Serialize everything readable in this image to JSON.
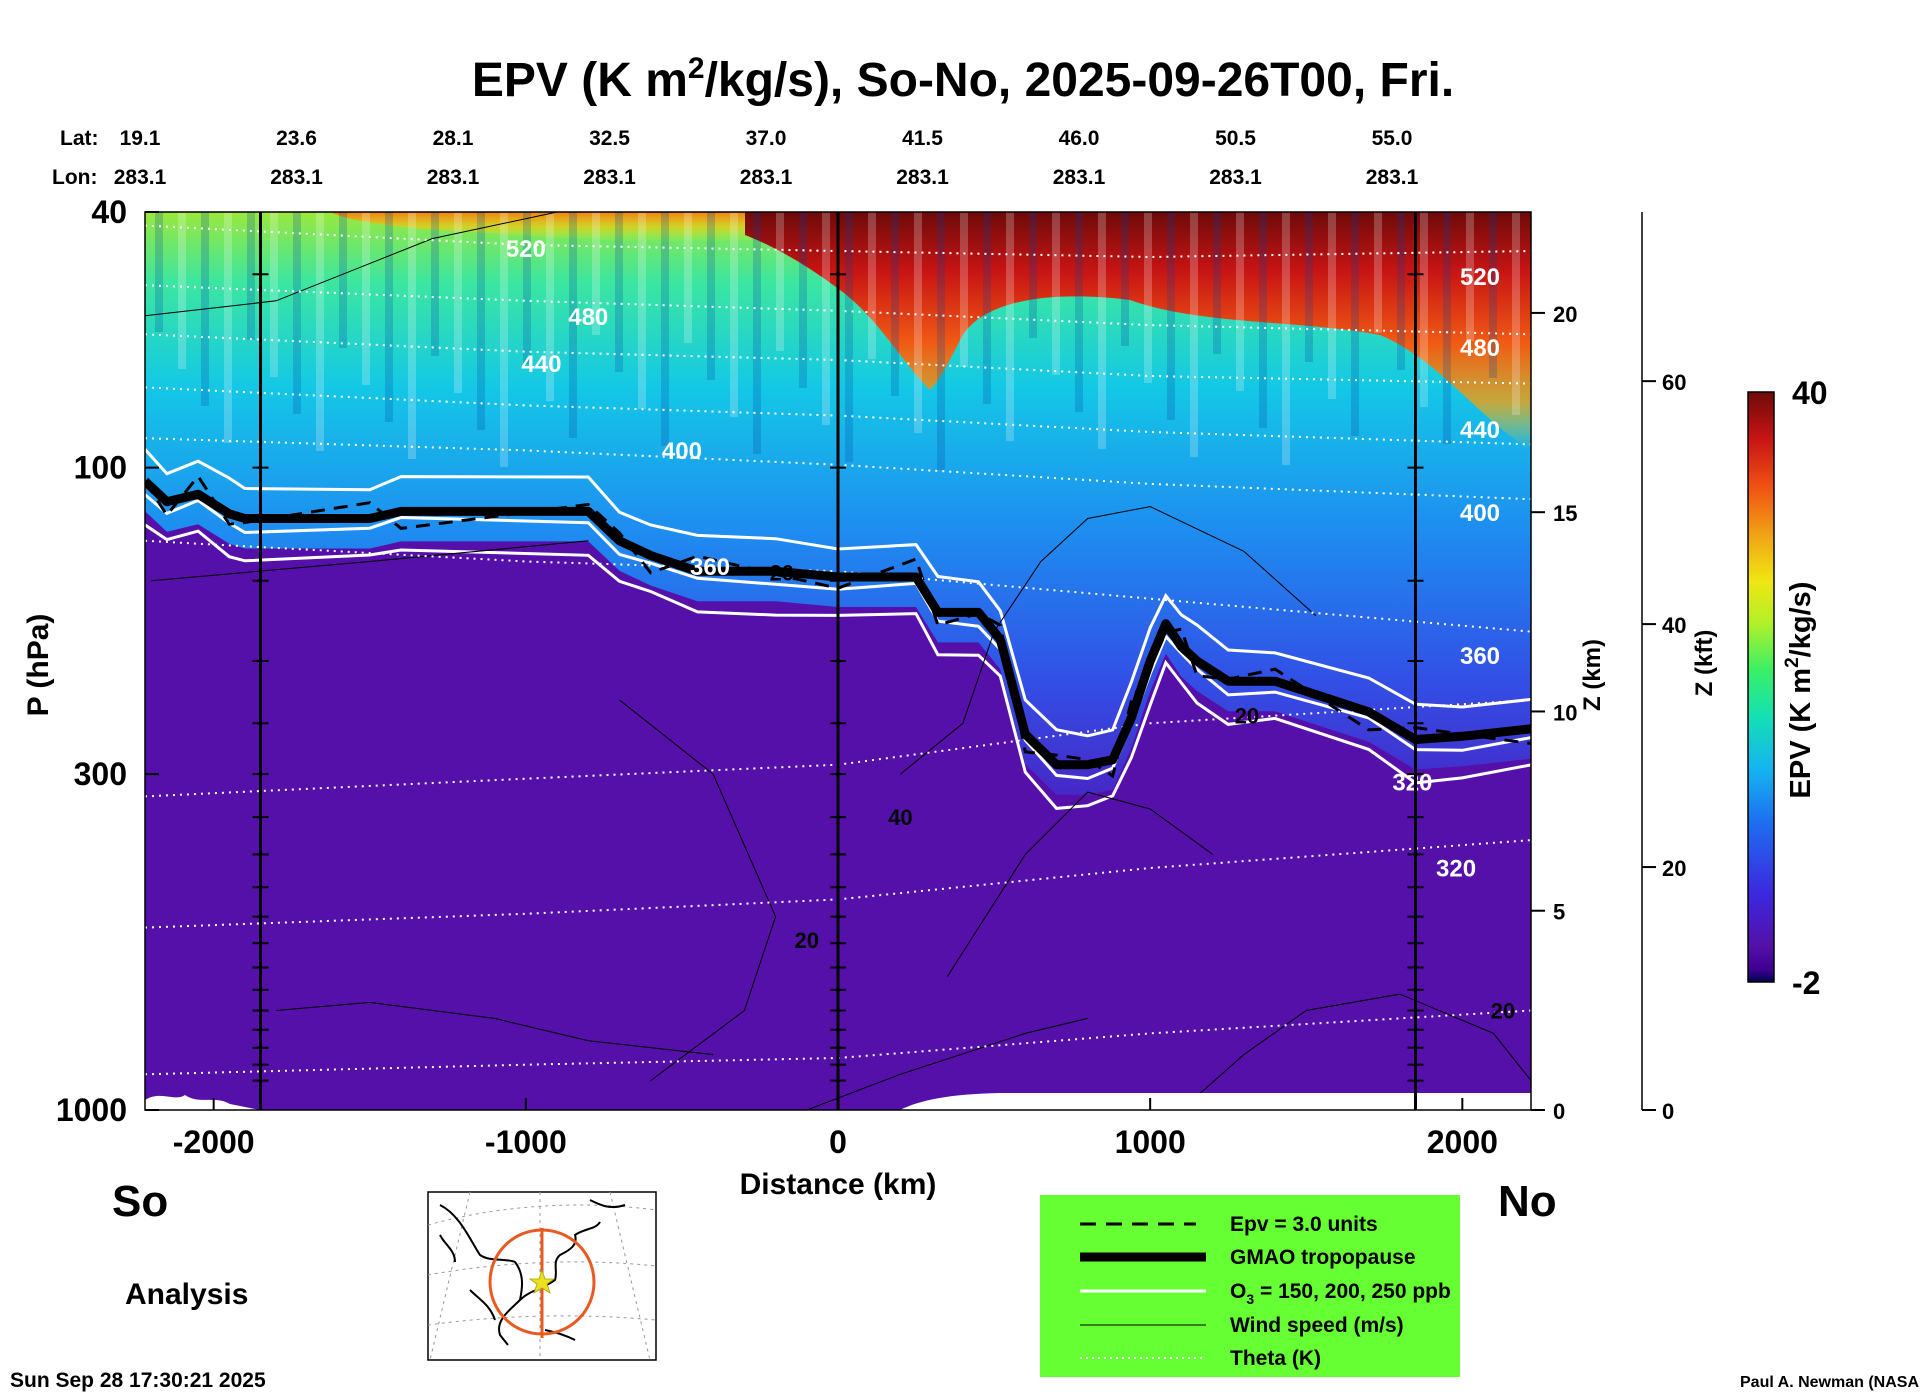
{
  "chart_data": {
    "type": "heatmap",
    "title": "EPV (K m²/kg/s), So-No, 2025-09-26T00, Fri.",
    "title_parts": {
      "pre": "EPV (K m",
      "sup": "2",
      "post": "/kg/s), So-No, 2025-09-26T00, Fri."
    },
    "xlabel": "Distance (km)",
    "ylabel": "P (hPa)",
    "z_km_label": "Z (km)",
    "z_kft_label": "Z (kft)",
    "colorbar_label": "EPV (K m²/kg/s)",
    "colorbar_label_parts": {
      "pre": "EPV (K m",
      "sup": "2",
      "post": "/kg/s)"
    },
    "x_range": [
      -2220,
      2220
    ],
    "p_range": [
      40,
      1000
    ],
    "x_ticks": [
      -2000,
      -1000,
      0,
      1000,
      2000
    ],
    "p_ticks": [
      40,
      100,
      300,
      1000
    ],
    "z_km_ticks": [
      0,
      5,
      10,
      15,
      20
    ],
    "z_kft_ticks": [
      0,
      20,
      40,
      60
    ],
    "colorbar_range": [
      -2,
      40
    ],
    "colorbar_ticks": [
      40,
      -2
    ],
    "lat_label": "Lat:",
    "lon_label": "Lon:",
    "lat_values": [
      "19.1",
      "23.6",
      "28.1",
      "32.5",
      "37.0",
      "41.5",
      "46.0",
      "50.5",
      "55.0"
    ],
    "lon_values": [
      "283.1",
      "283.1",
      "283.1",
      "283.1",
      "283.1",
      "283.1",
      "283.1",
      "283.1",
      "283.1"
    ],
    "marker_lines_km": [
      -1850,
      0,
      1850
    ],
    "tropopause_hpa": {
      "x": [
        -2220,
        -2150,
        -2050,
        -1950,
        -1900,
        -1500,
        -1400,
        -800,
        -700,
        -600,
        -450,
        -200,
        0,
        250,
        320,
        450,
        520,
        600,
        700,
        800,
        880,
        940,
        1000,
        1050,
        1100,
        1150,
        1250,
        1400,
        1700,
        1850,
        2000,
        2220
      ],
      "p": [
        105,
        113,
        110,
        118,
        120,
        120,
        117,
        117,
        130,
        137,
        145,
        145,
        148,
        148,
        168,
        168,
        185,
        260,
        290,
        290,
        285,
        245,
        200,
        175,
        190,
        200,
        215,
        215,
        240,
        265,
        262,
        255
      ]
    },
    "theta_levels": {
      "values": [
        520,
        480,
        440,
        400,
        360,
        320,
        320
      ],
      "label_x_km": [
        -1000,
        -800,
        -950,
        -500,
        -410,
        1840,
        1980
      ],
      "label_p_hpa": [
        47,
        60,
        71,
        97,
        147,
        318,
        433
      ],
      "label_text": [
        "520",
        "480",
        "440",
        "400",
        "360",
        "320",
        "320"
      ]
    },
    "right_theta_labels": {
      "text": [
        "520",
        "480",
        "440",
        "400",
        "360"
      ],
      "p_hpa": [
        52,
        67,
        90,
        121,
        202
      ]
    },
    "wind_labels": {
      "text": [
        "20",
        "40",
        "20",
        "20",
        "20"
      ]
    },
    "legend": [
      {
        "style": "dashed",
        "label": "Epv = 3.0 units"
      },
      {
        "style": "thick-black",
        "label": "GMAO tropopause"
      },
      {
        "style": "white",
        "label_pre": "O",
        "label_sub": "3",
        "label_post": " = 150, 200, 250 ppb"
      },
      {
        "style": "thin-black",
        "label": "Wind speed (m/s)"
      },
      {
        "style": "dotted",
        "label": "Theta (K)"
      }
    ],
    "south_label": "So",
    "north_label": "No",
    "analysis_label": "Analysis",
    "timestamp": "Sun Sep 28 17:30:21 2025",
    "credit": "Paul A. Newman (NASA"
  },
  "colors": {
    "background": "#ffffff",
    "legend_bg": "#66ff33",
    "troposphere": "#5410a8",
    "map_circle": "#e85a20",
    "map_star": "#e8e020"
  }
}
